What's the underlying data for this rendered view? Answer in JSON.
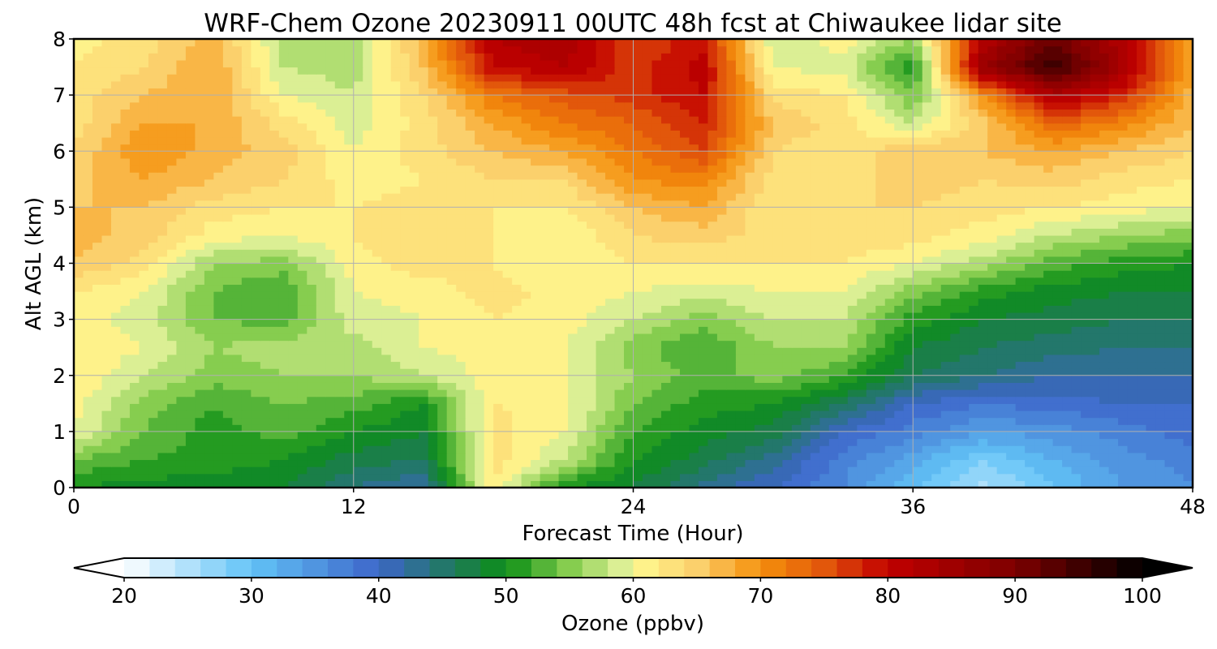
{
  "chart_data": {
    "type": "heatmap",
    "title": "WRF-Chem Ozone  20230911 00UTC 48h fcst at Chiwaukee lidar site",
    "xlabel": "Forecast Time (Hour)",
    "ylabel": "Alt AGL (km)",
    "xlim": [
      0,
      48
    ],
    "ylim": [
      0,
      8
    ],
    "x_ticks": [
      "0",
      "12",
      "24",
      "36",
      "48"
    ],
    "y_ticks": [
      "0",
      "1",
      "2",
      "3",
      "4",
      "5",
      "6",
      "7",
      "8"
    ],
    "grid": true,
    "x": [
      0,
      3,
      6,
      9,
      12,
      15,
      18,
      21,
      24,
      27,
      30,
      33,
      36,
      39,
      42,
      45,
      48
    ],
    "y": [
      0,
      0.5,
      1,
      1.5,
      2,
      2.5,
      3,
      3.5,
      4,
      4.5,
      5,
      5.5,
      6,
      6.5,
      7,
      7.5,
      8
    ],
    "z": [
      [
        50,
        49,
        49,
        48,
        44,
        42,
        62,
        50,
        48,
        43,
        40,
        36,
        30,
        25,
        30,
        34,
        36
      ],
      [
        54,
        52,
        51,
        50,
        47,
        46,
        63,
        58,
        50,
        47,
        43,
        37,
        33,
        28,
        32,
        35,
        37
      ],
      [
        60,
        54,
        51,
        53,
        50,
        48,
        63,
        60,
        52,
        49,
        47,
        40,
        37,
        34,
        35,
        37,
        39
      ],
      [
        61,
        55,
        52,
        54,
        53,
        50,
        62,
        61,
        54,
        51,
        50,
        46,
        40,
        38,
        39,
        40,
        40
      ],
      [
        62,
        58,
        55,
        56,
        56,
        58,
        61,
        60,
        56,
        53,
        55,
        52,
        46,
        44,
        42,
        42,
        42
      ],
      [
        62,
        60,
        56,
        57,
        57,
        60,
        61,
        60,
        55,
        52,
        56,
        56,
        48,
        46,
        45,
        44,
        44
      ],
      [
        61,
        59,
        54,
        53,
        59,
        60,
        62,
        61,
        58,
        55,
        58,
        58,
        51,
        48,
        47,
        46,
        46
      ],
      [
        62,
        60,
        54,
        52,
        60,
        61,
        63,
        61,
        60,
        59,
        60,
        60,
        55,
        51,
        49,
        48,
        48
      ],
      [
        66,
        63,
        56,
        55,
        61,
        63,
        62,
        60,
        62,
        62,
        62,
        62,
        60,
        57,
        53,
        51,
        50
      ],
      [
        67,
        65,
        61,
        60,
        62,
        64,
        62,
        60,
        64,
        65,
        63,
        63,
        63,
        61,
        58,
        56,
        55
      ],
      [
        66,
        66,
        63,
        62,
        62,
        63,
        62,
        62,
        66,
        68,
        62,
        64,
        64,
        63,
        62,
        61,
        60
      ],
      [
        65,
        68,
        66,
        64,
        61,
        62,
        64,
        64,
        70,
        71,
        63,
        63,
        65,
        64,
        65,
        63,
        62
      ],
      [
        64,
        70,
        67,
        65,
        60,
        63,
        66,
        68,
        72,
        76,
        64,
        62,
        66,
        66,
        68,
        66,
        64
      ],
      [
        63,
        68,
        68,
        63,
        59,
        63,
        68,
        72,
        74,
        78,
        66,
        63,
        58,
        65,
        74,
        71,
        66
      ],
      [
        63,
        66,
        68,
        60,
        58,
        64,
        72,
        75,
        77,
        80,
        63,
        62,
        54,
        70,
        83,
        78,
        67
      ],
      [
        62,
        64,
        68,
        58,
        57,
        66,
        80,
        82,
        77,
        81,
        60,
        59,
        50,
        86,
        96,
        84,
        68
      ],
      [
        61,
        63,
        67,
        57,
        57,
        67,
        82,
        84,
        76,
        79,
        58,
        61,
        56,
        82,
        92,
        82,
        67
      ]
    ],
    "colorbar": {
      "label": "Ozone  (ppbv)",
      "min": 20,
      "max": 100,
      "step": 2,
      "extend": "both",
      "ticks": [
        "20",
        "30",
        "40",
        "50",
        "60",
        "70",
        "80",
        "90",
        "100"
      ],
      "color_stops": [
        {
          "v": 20,
          "c": "#ffffff"
        },
        {
          "v": 30,
          "c": "#62c3f7"
        },
        {
          "v": 40,
          "c": "#3d66c9"
        },
        {
          "v": 46,
          "c": "#1e7a58"
        },
        {
          "v": 50,
          "c": "#0c8f16"
        },
        {
          "v": 55,
          "c": "#86cd4f"
        },
        {
          "v": 59,
          "c": "#dbef94"
        },
        {
          "v": 60,
          "c": "#fffb91"
        },
        {
          "v": 65,
          "c": "#fbd06c"
        },
        {
          "v": 70,
          "c": "#f5900c"
        },
        {
          "v": 75,
          "c": "#e2570b"
        },
        {
          "v": 80,
          "c": "#c10000"
        },
        {
          "v": 90,
          "c": "#7d0000"
        },
        {
          "v": 100,
          "c": "#000000"
        }
      ]
    }
  }
}
